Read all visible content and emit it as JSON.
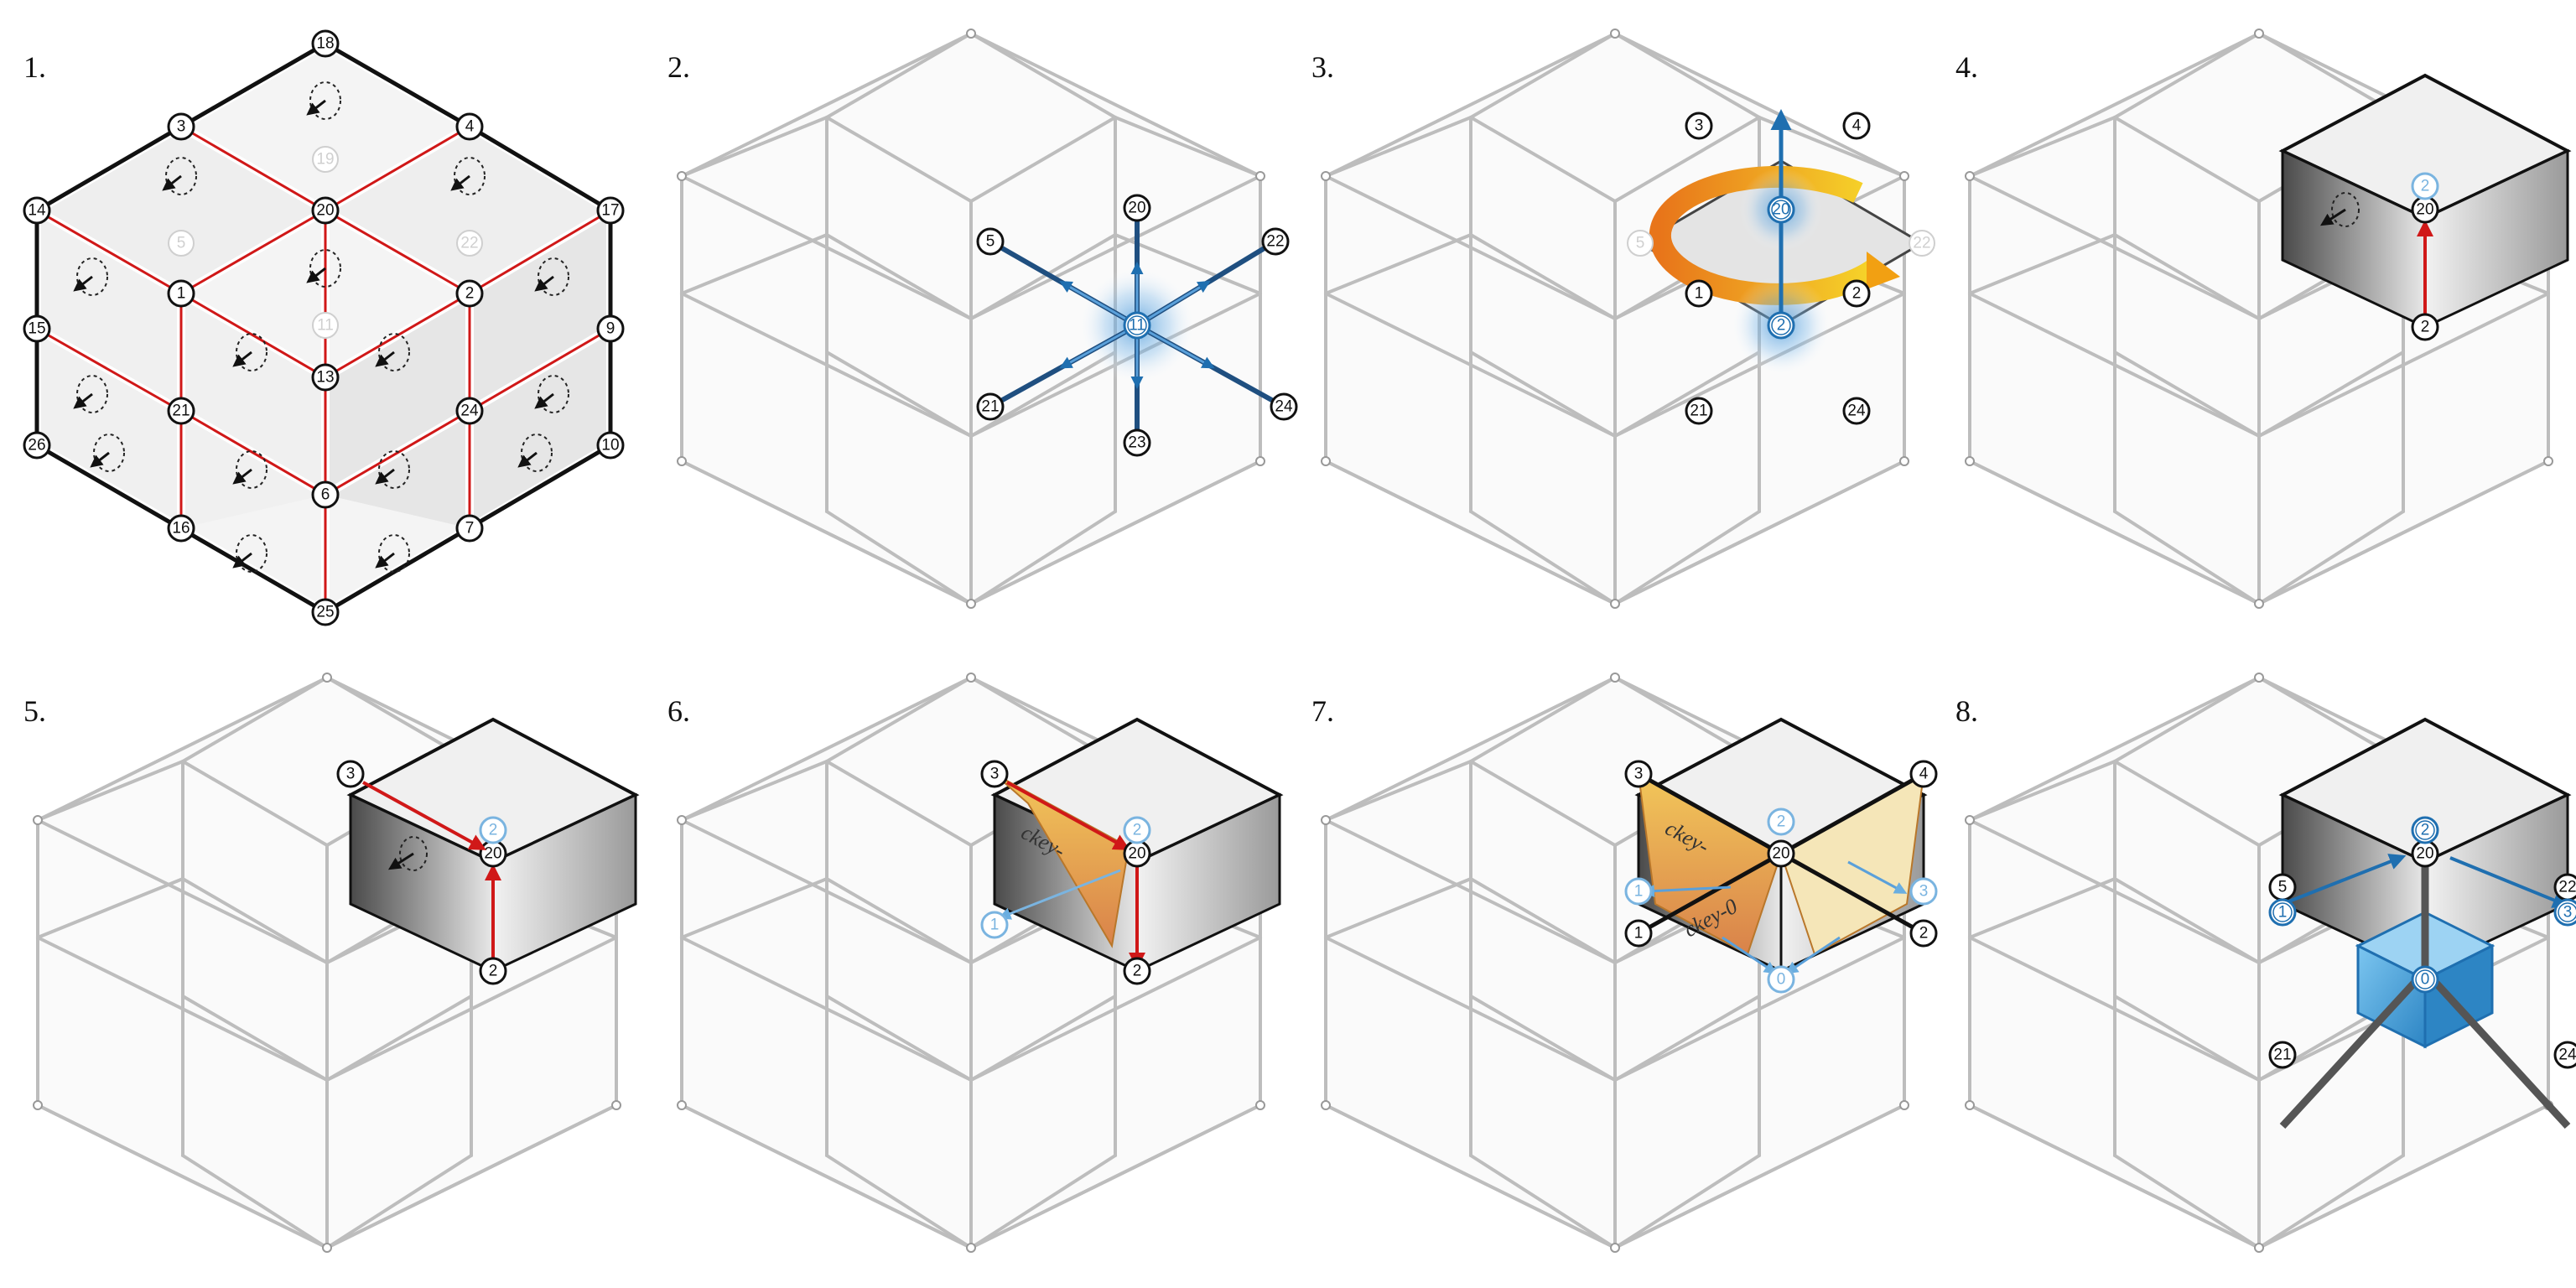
{
  "panels": [
    {
      "step": "1.",
      "mode": "full",
      "nodes": [
        {
          "id": "18",
          "p": [
            0,
            0,
            2
          ]
        },
        {
          "id": "3",
          "p": [
            -1,
            -1,
            2
          ]
        },
        {
          "id": "4",
          "p": [
            1,
            1,
            2
          ]
        },
        {
          "id": "14",
          "p": [
            -2,
            -2,
            2
          ]
        },
        {
          "id": "20",
          "p": [
            0,
            0,
            1
          ]
        },
        {
          "id": "17",
          "p": [
            2,
            2,
            2
          ]
        },
        {
          "id": "1",
          "p": [
            -1,
            -1,
            1
          ]
        },
        {
          "id": "2",
          "p": [
            1,
            1,
            1
          ]
        },
        {
          "id": "15",
          "p": [
            -2,
            -2,
            1
          ]
        },
        {
          "id": "9",
          "p": [
            2,
            2,
            1
          ]
        },
        {
          "id": "21",
          "p": [
            -1,
            -1,
            0
          ]
        },
        {
          "id": "13",
          "p": [
            0,
            0,
            0
          ]
        },
        {
          "id": "24",
          "p": [
            1,
            1,
            0
          ]
        },
        {
          "id": "26",
          "p": [
            -2,
            -2,
            0
          ]
        },
        {
          "id": "10",
          "p": [
            2,
            2,
            0
          ]
        },
        {
          "id": "6",
          "p": [
            0,
            -0.5,
            0
          ]
        },
        {
          "id": "16",
          "p": [
            -1,
            -2,
            0
          ]
        },
        {
          "id": "7",
          "p": [
            1,
            0,
            0
          ]
        },
        {
          "id": "25",
          "p": [
            0,
            -1,
            0
          ]
        },
        {
          "id": "5",
          "p": [
            -1,
            0,
            1
          ],
          "faded": true
        },
        {
          "id": "19",
          "p": [
            0,
            1,
            2
          ],
          "faded": true
        },
        {
          "id": "22",
          "p": [
            1,
            2,
            1
          ],
          "faded": true
        },
        {
          "id": "11",
          "p": [
            0,
            0,
            0.6
          ],
          "faded": true
        }
      ],
      "accent": "#d01818"
    },
    {
      "step": "2.",
      "mode": "axes",
      "center_label": "11",
      "nodes": [
        {
          "id": "20",
          "pos": [
            0,
            -1
          ]
        },
        {
          "id": "5",
          "pos": [
            -1.25,
            -0.7
          ]
        },
        {
          "id": "22",
          "pos": [
            1.15,
            -0.7
          ]
        },
        {
          "id": "21",
          "pos": [
            -1.2,
            0.7
          ]
        },
        {
          "id": "24",
          "pos": [
            1.2,
            0.7
          ]
        },
        {
          "id": "23",
          "pos": [
            0,
            1
          ]
        }
      ],
      "accent": "#1f6fb0"
    },
    {
      "step": "3.",
      "mode": "rotate",
      "nodes": [
        {
          "id": "3",
          "pos": [
            -1.25,
            -1.45
          ]
        },
        {
          "id": "4",
          "pos": [
            1.25,
            -1.45
          ]
        },
        {
          "id": "20",
          "pos": [
            0,
            -0.9
          ]
        },
        {
          "id": "1",
          "pos": [
            -1.25,
            -0.2
          ]
        },
        {
          "id": "2",
          "pos": [
            1.25,
            -0.2
          ]
        },
        {
          "id": "21",
          "pos": [
            -1.25,
            0.85
          ]
        },
        {
          "id": "24",
          "pos": [
            1.25,
            0.85
          ]
        }
      ],
      "center_label": "2",
      "faded": [
        "5",
        "22"
      ],
      "accent": "#1f6fb0",
      "arrow_color": "#f2a012"
    },
    {
      "step": "4.",
      "mode": "cell",
      "nodes": [
        {
          "id": "20",
          "pos": [
            0,
            -1
          ]
        },
        {
          "id": "2",
          "pos": [
            0,
            0.2
          ]
        }
      ],
      "blue_label": "2",
      "accent": "#d01818"
    },
    {
      "step": "5.",
      "mode": "cell",
      "nodes": [
        {
          "id": "3",
          "pos": [
            -1.25,
            -1.4
          ]
        },
        {
          "id": "20",
          "pos": [
            0,
            -1
          ]
        },
        {
          "id": "2",
          "pos": [
            0,
            0.2
          ]
        }
      ],
      "blue_label": "2",
      "accent": "#d01818"
    },
    {
      "step": "6.",
      "mode": "fold",
      "nodes": [
        {
          "id": "3",
          "pos": [
            -1.25,
            -1.4
          ]
        },
        {
          "id": "20",
          "pos": [
            0,
            -1
          ]
        },
        {
          "id": "2",
          "pos": [
            0,
            0.2
          ]
        }
      ],
      "blue_labels": [
        "2",
        "1"
      ],
      "face_text": "ckey-",
      "accent": "#d01818"
    },
    {
      "step": "7.",
      "mode": "cross",
      "nodes": [
        {
          "id": "3",
          "pos": [
            -1.25,
            -1.45
          ]
        },
        {
          "id": "4",
          "pos": [
            1.25,
            -1.45
          ]
        },
        {
          "id": "20",
          "pos": [
            0,
            -0.95
          ]
        },
        {
          "id": "1",
          "pos": [
            -1.25,
            -0.2
          ]
        },
        {
          "id": "2",
          "pos": [
            1.25,
            -0.2
          ]
        }
      ],
      "blue_labels": [
        "2",
        "1",
        "3",
        "0"
      ],
      "face_text": "ckey-",
      "face_text2": "ckey-0",
      "accent": "#1f6fb0"
    },
    {
      "step": "8.",
      "mode": "final",
      "nodes": [
        {
          "id": "5",
          "pos": [
            -1.25,
            -0.7
          ]
        },
        {
          "id": "20",
          "pos": [
            0,
            -0.95
          ]
        },
        {
          "id": "22",
          "pos": [
            1.25,
            -0.7
          ]
        },
        {
          "id": "21",
          "pos": [
            -1.25,
            0.85
          ]
        },
        {
          "id": "24",
          "pos": [
            1.25,
            0.85
          ]
        }
      ],
      "blue_labels": [
        "2",
        "1",
        "3",
        "0"
      ],
      "accent": "#1f6fb0",
      "cube_color": "#4aa6dc"
    }
  ]
}
